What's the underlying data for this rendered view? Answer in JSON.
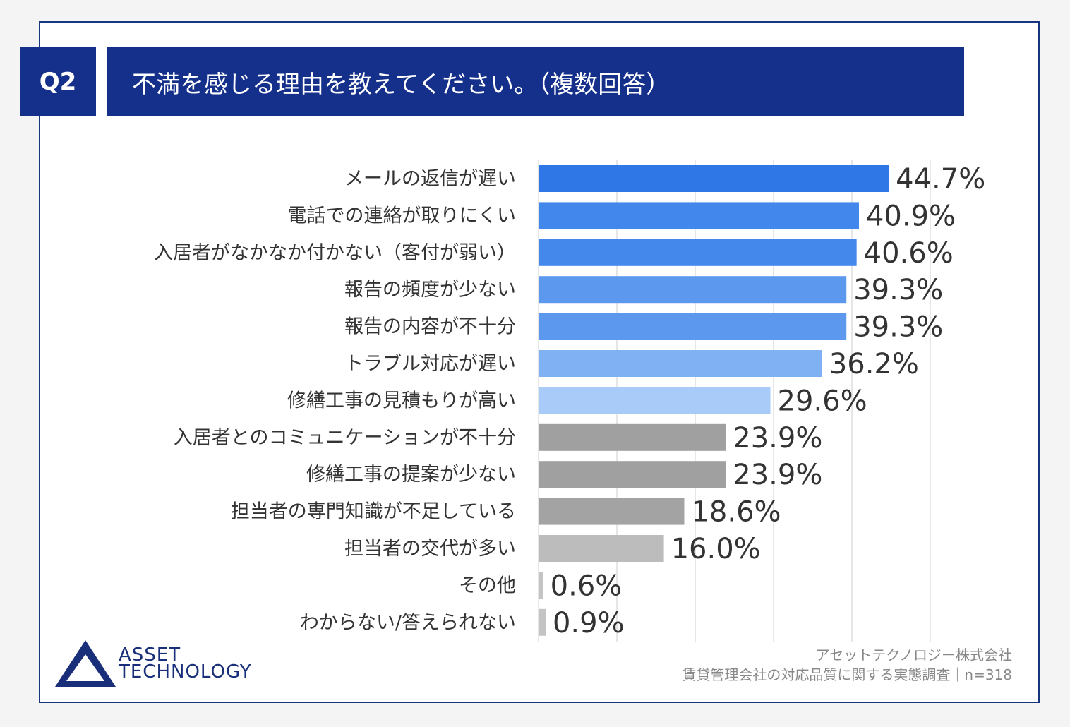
{
  "header": {
    "badge": "Q2",
    "title": "不満を感じる理由を教えてください。（複数回答）"
  },
  "chart_data": {
    "type": "bar",
    "orientation": "horizontal",
    "categories": [
      "メールの返信が遅い",
      "電話での連絡が取りにくい",
      "入居者がなかなか付かない（客付が弱い）",
      "報告の頻度が少ない",
      "報告の内容が不十分",
      "トラブル対応が遅い",
      "修繕工事の見積もりが高い",
      "入居者とのコミュニケーションが不十分",
      "修繕工事の提案が少ない",
      "担当者の専門知識が不足している",
      "担当者の交代が多い",
      "その他",
      "わからない/答えられない"
    ],
    "values": [
      44.7,
      40.9,
      40.6,
      39.3,
      39.3,
      36.2,
      29.6,
      23.9,
      23.9,
      18.6,
      16.0,
      0.6,
      0.9
    ],
    "value_labels": [
      "44.7%",
      "40.9%",
      "40.6%",
      "39.3%",
      "39.3%",
      "36.2%",
      "29.6%",
      "23.9%",
      "23.9%",
      "18.6%",
      "16.0%",
      "0.6%",
      "0.9%"
    ],
    "colors": [
      "#2f76e6",
      "#4288ec",
      "#4488ec",
      "#5c99ee",
      "#5c99ee",
      "#80b2f3",
      "#a8cbf7",
      "#a0a0a0",
      "#a0a0a0",
      "#a3a3a3",
      "#bcbcbc",
      "#c4c4c4",
      "#c4c4c4"
    ],
    "xlim": [
      0,
      50
    ],
    "grid": true
  },
  "footer": {
    "logo_line1": "ASSET",
    "logo_line2": "TECHNOLOGY",
    "company": "アセットテクノロジー株式会社",
    "survey": "賃貸管理会社の対応品質に関する実態調査｜n=318"
  },
  "colors": {
    "navy": "#14308a"
  }
}
